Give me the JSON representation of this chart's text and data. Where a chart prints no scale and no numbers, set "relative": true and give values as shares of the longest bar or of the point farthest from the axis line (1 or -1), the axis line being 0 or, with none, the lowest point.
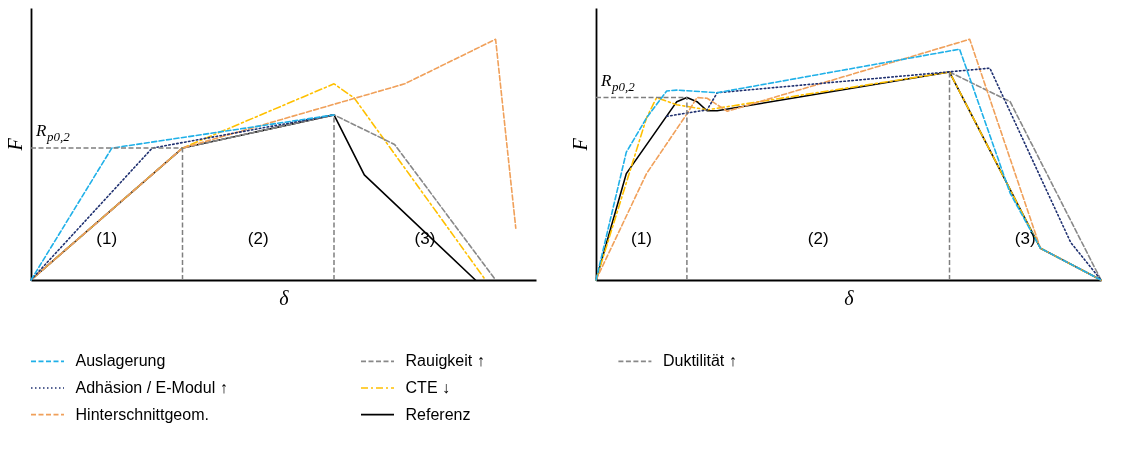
{
  "chart_data": [
    {
      "type": "line",
      "relative": true,
      "xlabel": "δ",
      "ylabel": "F",
      "tick_labels": false,
      "legend": "bottom",
      "categories": [
        null,
        null,
        null,
        null,
        null,
        null,
        null,
        null,
        null,
        null,
        null,
        null,
        null,
        null,
        null,
        null,
        null,
        null,
        null,
        null,
        null,
        null,
        null,
        null,
        null,
        null,
        null,
        null,
        null,
        null,
        null,
        null,
        null,
        null,
        null,
        null,
        null,
        null,
        null,
        null,
        null,
        null,
        null,
        null,
        null,
        null,
        null,
        null,
        null,
        null,
        null
      ],
      "series": [
        {
          "name": "Auslagerung",
          "color": "#1fb0e8",
          "line_style": "dashed",
          "values": [
            0,
            null,
            null,
            null,
            null,
            null,
            null,
            null,
            0.548,
            null,
            null,
            null,
            null,
            null,
            null,
            null,
            null,
            null,
            null,
            null,
            null,
            null,
            null,
            null,
            null,
            null,
            null,
            null,
            null,
            null,
            0.686,
            null,
            null,
            null,
            null,
            null,
            null,
            null,
            null,
            null,
            null,
            null,
            null,
            null,
            null,
            null,
            null,
            null,
            null,
            null,
            null
          ]
        },
        {
          "name": "Adhäsion / E-Modul ↑",
          "color": "#1f3070",
          "line_style": "dotted",
          "values": [
            0,
            null,
            null,
            null,
            null,
            null,
            null,
            null,
            null,
            null,
            null,
            null,
            0.548,
            null,
            null,
            null,
            null,
            null,
            null,
            null,
            null,
            null,
            null,
            null,
            null,
            null,
            null,
            null,
            null,
            null,
            0.686,
            null,
            null,
            null,
            null,
            null,
            null,
            null,
            null,
            null,
            null,
            null,
            null,
            null,
            null,
            null,
            null,
            null,
            null,
            null,
            null
          ]
        },
        {
          "name": "Hinterschnittgeom.",
          "color": "#f0a05a",
          "line_style": "dashed",
          "values": [
            0,
            null,
            null,
            null,
            null,
            null,
            null,
            null,
            null,
            null,
            null,
            null,
            null,
            null,
            null,
            0.548,
            null,
            null,
            null,
            null,
            null,
            null,
            null,
            null,
            null,
            null,
            null,
            null,
            null,
            null,
            null,
            null,
            null,
            null,
            null,
            null,
            null,
            0.815,
            null,
            null,
            null,
            null,
            null,
            null,
            null,
            null,
            1,
            null,
            0.215,
            null,
            null
          ]
        },
        {
          "name": "Rauigkeit ↑",
          "color": "#888888",
          "line_style": "dashed",
          "values": [
            0,
            null,
            null,
            null,
            null,
            null,
            null,
            null,
            null,
            null,
            null,
            null,
            null,
            null,
            null,
            0.548,
            null,
            null,
            null,
            null,
            null,
            null,
            null,
            null,
            null,
            null,
            null,
            null,
            null,
            null,
            0.686,
            null,
            null,
            null,
            null,
            null,
            0.563,
            null,
            null,
            null,
            null,
            null,
            null,
            null,
            null,
            null,
            0,
            null,
            null,
            null,
            null
          ]
        },
        {
          "name": "CTE ↓",
          "color": "#ffc000",
          "line_style": "dashdot",
          "values": [
            0,
            null,
            null,
            null,
            null,
            null,
            null,
            null,
            null,
            null,
            null,
            null,
            null,
            null,
            null,
            0.548,
            null,
            null,
            null,
            null,
            null,
            null,
            null,
            null,
            null,
            null,
            null,
            null,
            null,
            null,
            0.815,
            null,
            0.756,
            null,
            null,
            null,
            null,
            null,
            null,
            null,
            null,
            null,
            null,
            null,
            null,
            0,
            null,
            null,
            null,
            null,
            null
          ]
        },
        {
          "name": "Referenz",
          "color": "#000000",
          "line_style": "solid",
          "values": [
            0,
            null,
            null,
            null,
            null,
            null,
            null,
            null,
            null,
            null,
            null,
            null,
            null,
            null,
            null,
            0.548,
            null,
            null,
            null,
            null,
            null,
            null,
            null,
            null,
            null,
            null,
            null,
            null,
            null,
            null,
            0.686,
            null,
            null,
            0.437,
            null,
            null,
            null,
            null,
            null,
            null,
            null,
            null,
            null,
            null,
            0,
            null,
            null,
            null,
            null,
            null,
            null
          ]
        }
      ],
      "ref_lines": [
        {
          "axis": "y",
          "value": 0.548,
          "label": "R$_{p0,2}$",
          "color": "#7f7f7f",
          "line_style": "dashed"
        }
      ],
      "annotations": [
        "(1)",
        "(2)",
        "(3)"
      ]
    },
    {
      "type": "line",
      "relative": true,
      "xlabel": "δ",
      "ylabel": "F",
      "tick_labels": false,
      "legend": "bottom",
      "categories": [
        null,
        null,
        null,
        null,
        null,
        null,
        null,
        null,
        null,
        null,
        null,
        null,
        null,
        null,
        null,
        null,
        null,
        null,
        null,
        null,
        null,
        null,
        null,
        null,
        null,
        null,
        null,
        null,
        null,
        null,
        null,
        null,
        null,
        null,
        null,
        null,
        null,
        null,
        null,
        null,
        null,
        null,
        null,
        null,
        null,
        null,
        null,
        null,
        null,
        null,
        null
      ],
      "series": [
        {
          "color": "#1fb0e8",
          "line_style": "dashed",
          "values": [
            0,
            null,
            null,
            0.531,
            null,
            0.673,
            null,
            0.785,
            0.789,
            null,
            null,
            null,
            0.778,
            null,
            null,
            null,
            null,
            null,
            null,
            null,
            null,
            null,
            null,
            null,
            null,
            null,
            null,
            null,
            null,
            null,
            null,
            null,
            null,
            null,
            null,
            null,
            0.959,
            null,
            null,
            null,
            null,
            0.361,
            null,
            null,
            0.132,
            null,
            null,
            null,
            null,
            null,
            0
          ]
        },
        {
          "color": "#1f3070",
          "line_style": "dotted",
          "values": [
            null,
            null,
            null,
            null,
            null,
            null,
            null,
            0.68,
            null,
            null,
            null,
            0.707,
            0.778,
            null,
            null,
            null,
            null,
            null,
            null,
            null,
            null,
            null,
            null,
            null,
            null,
            null,
            null,
            null,
            null,
            null,
            null,
            null,
            null,
            null,
            null,
            null,
            null,
            null,
            null,
            0.88,
            null,
            null,
            null,
            null,
            null,
            null,
            null,
            0.156,
            null,
            null,
            0
          ]
        },
        {
          "color": "#f0a05a",
          "line_style": "dashed",
          "values": [
            0,
            null,
            null,
            null,
            null,
            0.442,
            null,
            null,
            null,
            0.69,
            0.758,
            0.755,
            null,
            0.701,
            null,
            null,
            null,
            null,
            null,
            null,
            null,
            null,
            null,
            null,
            null,
            null,
            null,
            null,
            null,
            null,
            null,
            null,
            null,
            null,
            null,
            null,
            null,
            1,
            null,
            null,
            null,
            null,
            null,
            null,
            0.132,
            null,
            null,
            null,
            null,
            null,
            0
          ]
        },
        {
          "color": "#ffc000",
          "line_style": "dashdot",
          "values": [
            0,
            null,
            null,
            null,
            null,
            0.673,
            0.758,
            null,
            0.728,
            null,
            null,
            0.707,
            null,
            null,
            null,
            null,
            null,
            null,
            null,
            null,
            null,
            null,
            null,
            null,
            null,
            null,
            null,
            null,
            null,
            null,
            null,
            null,
            null,
            null,
            null,
            0.864,
            null,
            null,
            null,
            null,
            null,
            null,
            null,
            null,
            0.132,
            null,
            null,
            null,
            null,
            null,
            0
          ]
        },
        {
          "color": "#000000",
          "line_style": "solid",
          "values": [
            0,
            null,
            null,
            0.442,
            null,
            null,
            null,
            null,
            0.741,
            0.758,
            0.741,
            0.703,
            0.703,
            null,
            null,
            null,
            null,
            null,
            null,
            null,
            null,
            null,
            null,
            null,
            null,
            null,
            null,
            null,
            null,
            null,
            null,
            null,
            null,
            null,
            null,
            0.864,
            null,
            null,
            null,
            null,
            null,
            null,
            null,
            null,
            0.132,
            null,
            null,
            null,
            null,
            null,
            0
          ]
        },
        {
          "name": "Duktilität ↑",
          "color": "#888888",
          "line_style": "dashed",
          "values": [
            null,
            null,
            null,
            null,
            null,
            null,
            null,
            null,
            null,
            null,
            null,
            null,
            null,
            null,
            null,
            null,
            null,
            null,
            null,
            null,
            null,
            null,
            null,
            null,
            null,
            null,
            null,
            null,
            null,
            null,
            null,
            null,
            null,
            null,
            null,
            0.864,
            null,
            null,
            null,
            null,
            null,
            0.741,
            null,
            null,
            null,
            null,
            null,
            null,
            null,
            null,
            0
          ]
        }
      ],
      "ref_lines": [
        {
          "axis": "y",
          "value": 0.758,
          "label": "R$_{p0,2}$",
          "color": "#7f7f7f",
          "line_style": "dashed"
        }
      ],
      "annotations": [
        "(1)",
        "(2)",
        "(3)"
      ]
    }
  ]
}
